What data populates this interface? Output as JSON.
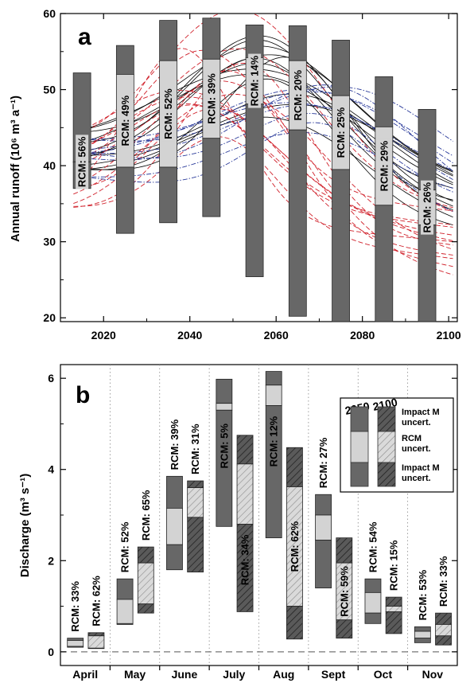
{
  "chart_data": [
    {
      "panel": "a",
      "type": "bar",
      "ylabel": "Annual runoff (10⁶ m³ a⁻¹)",
      "xlim": [
        2010,
        2102
      ],
      "ylim": [
        19.5,
        60
      ],
      "xticks": [
        2020,
        2040,
        2060,
        2080,
        2100
      ],
      "yticks": [
        20,
        30,
        40,
        50,
        60
      ],
      "boxes": [
        {
          "x": 2015,
          "low": 37.0,
          "rcm_low": 40.5,
          "rcm_high": 40.5,
          "high": 52.2,
          "label": "RCM: 56%"
        },
        {
          "x": 2025,
          "low": 31.1,
          "rcm_low": 39.8,
          "rcm_high": 52.0,
          "high": 55.8,
          "label": "RCM: 49%"
        },
        {
          "x": 2035,
          "low": 32.5,
          "rcm_low": 39.8,
          "rcm_high": 53.8,
          "high": 59.1,
          "label": "RCM: 52%"
        },
        {
          "x": 2045,
          "low": 33.3,
          "rcm_low": 43.6,
          "rcm_high": 54.0,
          "high": 59.4,
          "label": "RCM: 39%"
        },
        {
          "x": 2055,
          "low": 25.4,
          "rcm_low": 48.1,
          "rcm_high": 54.2,
          "high": 58.5,
          "label": "RCM: 14%"
        },
        {
          "x": 2065,
          "low": 20.2,
          "rcm_low": 44.7,
          "rcm_high": 53.8,
          "high": 58.4,
          "label": "RCM: 20%"
        },
        {
          "x": 2075,
          "low": 19.5,
          "rcm_low": 39.5,
          "rcm_high": 49.2,
          "high": 56.5,
          "label": "RCM: 25%"
        },
        {
          "x": 2085,
          "low": 19.5,
          "rcm_low": 34.8,
          "rcm_high": 45.1,
          "high": 51.7,
          "label": "RCM: 29%"
        },
        {
          "x": 2095,
          "low": 19.5,
          "rcm_low": 32.2,
          "rcm_high": 36.8,
          "high": 47.4,
          "label": "RCM: 26%"
        }
      ],
      "series_colors": {
        "black_solid": "#000000",
        "red_dashed": "#d0202a",
        "blue_dashdot": "#2a3a9a"
      }
    },
    {
      "panel": "b",
      "type": "bar",
      "ylabel": "Discharge (m³ s⁻¹)",
      "ylim": [
        -0.3,
        6.3
      ],
      "yticks": [
        0,
        2,
        4,
        6
      ],
      "categories": [
        "April",
        "May",
        "June",
        "July",
        "Aug",
        "Sept",
        "Oct",
        "Nov"
      ],
      "boxes_2050": [
        {
          "month": "April",
          "low": 0.1,
          "rcm_low": 0.12,
          "rcm_high": 0.25,
          "high": 0.3,
          "label": "RCM: 33%"
        },
        {
          "month": "May",
          "low": 0.6,
          "rcm_low": 0.62,
          "rcm_high": 1.15,
          "high": 1.6,
          "label": "RCM: 52%"
        },
        {
          "month": "June",
          "low": 1.8,
          "rcm_low": 2.35,
          "rcm_high": 3.15,
          "high": 3.85,
          "label": "RCM: 39%"
        },
        {
          "month": "July",
          "low": 2.75,
          "rcm_low": 5.3,
          "rcm_high": 5.45,
          "high": 5.98,
          "label": "RCM:  5%"
        },
        {
          "month": "Aug",
          "low": 2.5,
          "rcm_low": 5.4,
          "rcm_high": 5.85,
          "high": 6.15,
          "label": "RCM: 12%"
        },
        {
          "month": "Sept",
          "low": 1.4,
          "rcm_low": 2.45,
          "rcm_high": 3.0,
          "high": 3.45,
          "label": "RCM: 27%"
        },
        {
          "month": "Oct",
          "low": 0.62,
          "rcm_low": 0.85,
          "rcm_high": 1.3,
          "high": 1.6,
          "label": "RCM: 54%"
        },
        {
          "month": "Nov",
          "low": 0.2,
          "rcm_low": 0.3,
          "rcm_high": 0.45,
          "high": 0.55,
          "label": "RCM: 53%"
        }
      ],
      "boxes_2100": [
        {
          "month": "April",
          "low": 0.08,
          "rcm_low": 0.08,
          "rcm_high": 0.35,
          "high": 0.42,
          "label": "RCM: 62%"
        },
        {
          "month": "May",
          "low": 0.85,
          "rcm_low": 1.05,
          "rcm_high": 1.95,
          "high": 2.3,
          "label": "RCM: 65%"
        },
        {
          "month": "June",
          "low": 1.75,
          "rcm_low": 2.95,
          "rcm_high": 3.6,
          "high": 3.75,
          "label": "RCM: 31%"
        },
        {
          "month": "July",
          "low": 0.88,
          "rcm_low": 2.8,
          "rcm_high": 4.12,
          "high": 4.75,
          "label": "RCM: 34%"
        },
        {
          "month": "Aug",
          "low": 0.28,
          "rcm_low": 1.0,
          "rcm_high": 3.62,
          "high": 4.48,
          "label": "RCM: 62%"
        },
        {
          "month": "Sept",
          "low": 0.3,
          "rcm_low": 0.7,
          "rcm_high": 1.95,
          "high": 2.5,
          "label": "RCM: 59%"
        },
        {
          "month": "Oct",
          "low": 0.4,
          "rcm_low": 0.88,
          "rcm_high": 1.0,
          "high": 1.2,
          "label": "RCM: 15%"
        },
        {
          "month": "Nov",
          "low": 0.15,
          "rcm_low": 0.35,
          "rcm_high": 0.6,
          "high": 0.85,
          "label": "RCM: 33%"
        }
      ],
      "legend": {
        "position": "top-right",
        "col1": "2050",
        "col2": "2100",
        "rows": [
          "Impact M uncert.",
          "RCM uncert.",
          "Impact M uncert."
        ]
      }
    }
  ],
  "panels": {
    "a_letter": "a",
    "b_letter": "b"
  },
  "colors": {
    "box_dark": "#676767",
    "box_light": "#d3d3d3",
    "hatch_dark": "#4d4d4d",
    "hatch_light": "#cfcfcf"
  }
}
